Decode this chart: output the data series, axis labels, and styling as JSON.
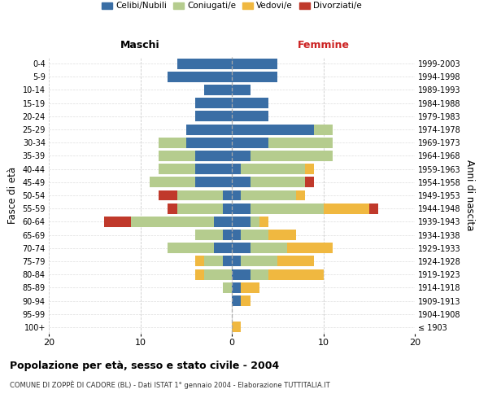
{
  "age_groups": [
    "100+",
    "95-99",
    "90-94",
    "85-89",
    "80-84",
    "75-79",
    "70-74",
    "65-69",
    "60-64",
    "55-59",
    "50-54",
    "45-49",
    "40-44",
    "35-39",
    "30-34",
    "25-29",
    "20-24",
    "15-19",
    "10-14",
    "5-9",
    "0-4"
  ],
  "birth_years": [
    "≤ 1903",
    "1904-1908",
    "1909-1913",
    "1914-1918",
    "1919-1923",
    "1924-1928",
    "1929-1933",
    "1934-1938",
    "1939-1943",
    "1944-1948",
    "1949-1953",
    "1954-1958",
    "1959-1963",
    "1964-1968",
    "1969-1973",
    "1974-1978",
    "1979-1983",
    "1984-1988",
    "1989-1993",
    "1994-1998",
    "1999-2003"
  ],
  "maschi": {
    "celibi": [
      0,
      0,
      0,
      0,
      0,
      1,
      2,
      1,
      2,
      1,
      1,
      4,
      4,
      4,
      5,
      5,
      4,
      4,
      3,
      7,
      6
    ],
    "coniugati": [
      0,
      0,
      0,
      1,
      3,
      2,
      5,
      3,
      9,
      5,
      5,
      5,
      4,
      4,
      3,
      0,
      0,
      0,
      0,
      0,
      0
    ],
    "vedovi": [
      0,
      0,
      0,
      0,
      1,
      1,
      0,
      0,
      0,
      0,
      0,
      0,
      0,
      0,
      0,
      0,
      0,
      0,
      0,
      0,
      0
    ],
    "divorziati": [
      0,
      0,
      0,
      0,
      0,
      0,
      0,
      0,
      3,
      1,
      2,
      0,
      0,
      0,
      0,
      0,
      0,
      0,
      0,
      0,
      0
    ]
  },
  "femmine": {
    "nubili": [
      0,
      0,
      1,
      1,
      2,
      1,
      2,
      1,
      2,
      2,
      1,
      2,
      1,
      2,
      4,
      9,
      4,
      4,
      2,
      5,
      5
    ],
    "coniugate": [
      0,
      0,
      0,
      0,
      2,
      4,
      4,
      3,
      1,
      8,
      6,
      6,
      7,
      9,
      7,
      2,
      0,
      0,
      0,
      0,
      0
    ],
    "vedove": [
      1,
      0,
      1,
      2,
      6,
      4,
      5,
      3,
      1,
      5,
      1,
      0,
      1,
      0,
      0,
      0,
      0,
      0,
      0,
      0,
      0
    ],
    "divorziate": [
      0,
      0,
      0,
      0,
      0,
      0,
      0,
      0,
      0,
      1,
      0,
      1,
      0,
      0,
      0,
      0,
      0,
      0,
      0,
      0,
      0
    ]
  },
  "colors": {
    "celibi_nubili": "#3a6ea5",
    "coniugati": "#b5cc8e",
    "vedovi": "#f0b840",
    "divorziati": "#c0392b"
  },
  "xlim": 20,
  "title": "Popolazione per età, sesso e stato civile - 2004",
  "subtitle": "COMUNE DI ZOPPÈ DI CADORE (BL) - Dati ISTAT 1° gennaio 2004 - Elaborazione TUTTITALIA.IT",
  "xlabel_left": "Maschi",
  "xlabel_right": "Femmine",
  "ylabel_left": "Fasce di età",
  "ylabel_right": "Anni di nascita",
  "legend_labels": [
    "Celibi/Nubili",
    "Coniugati/e",
    "Vedovi/e",
    "Divorziati/e"
  ]
}
